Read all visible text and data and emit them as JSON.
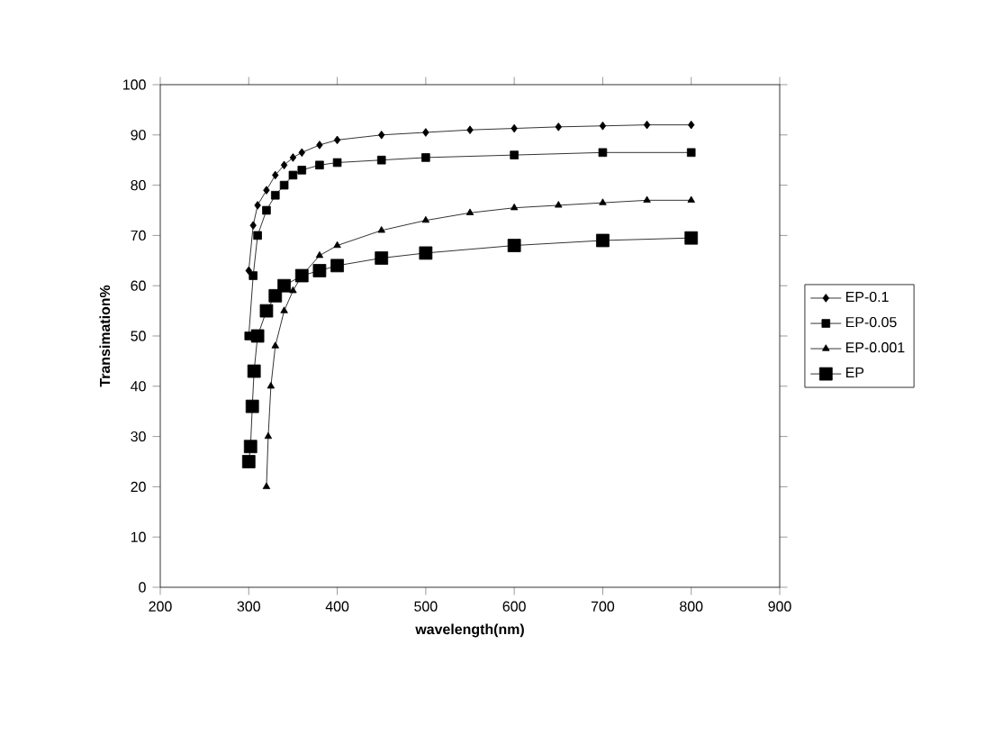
{
  "chart_data": {
    "type": "line",
    "xlabel": "wavelength(nm)",
    "ylabel": "Transimation%",
    "xlim": [
      200,
      900
    ],
    "xticks": [
      200,
      300,
      400,
      500,
      600,
      700,
      800,
      900
    ],
    "ylim": [
      0,
      100
    ],
    "yticks": [
      0,
      10,
      20,
      30,
      40,
      50,
      60,
      70,
      80,
      90,
      100
    ],
    "grid": false,
    "legend": "right",
    "series": [
      {
        "name": "EP-0.1",
        "color": "#000000",
        "marker": "diamond",
        "x": [
          300,
          305,
          310,
          320,
          330,
          340,
          350,
          360,
          380,
          400,
          450,
          500,
          550,
          600,
          650,
          700,
          750,
          800
        ],
        "values": [
          63,
          72,
          76,
          79,
          82,
          84,
          85.5,
          86.5,
          88,
          89,
          90,
          90.5,
          91,
          91.3,
          91.6,
          91.8,
          92,
          92
        ]
      },
      {
        "name": "EP-0.05",
        "color": "#000000",
        "marker": "square",
        "x": [
          300,
          305,
          310,
          320,
          330,
          340,
          350,
          360,
          380,
          400,
          450,
          500,
          600,
          700,
          800
        ],
        "values": [
          50,
          62,
          70,
          75,
          78,
          80,
          82,
          83,
          84,
          84.5,
          85,
          85.5,
          86,
          86.5,
          86.5
        ]
      },
      {
        "name": "EP-0.001",
        "color": "#000000",
        "marker": "triangle",
        "x": [
          320,
          322,
          325,
          330,
          340,
          350,
          360,
          380,
          400,
          450,
          500,
          550,
          600,
          650,
          700,
          750,
          800
        ],
        "values": [
          20,
          30,
          40,
          48,
          55,
          59,
          62,
          66,
          68,
          71,
          73,
          74.5,
          75.5,
          76,
          76.5,
          77,
          77
        ]
      },
      {
        "name": "EP",
        "color": "#000000",
        "marker": "square",
        "x": [
          300,
          302,
          304,
          306,
          310,
          320,
          330,
          340,
          360,
          380,
          400,
          450,
          500,
          600,
          700,
          800
        ],
        "values": [
          25,
          28,
          36,
          43,
          50,
          55,
          58,
          60,
          62,
          63,
          64,
          65.5,
          66.5,
          68,
          69,
          69.5
        ]
      }
    ]
  }
}
